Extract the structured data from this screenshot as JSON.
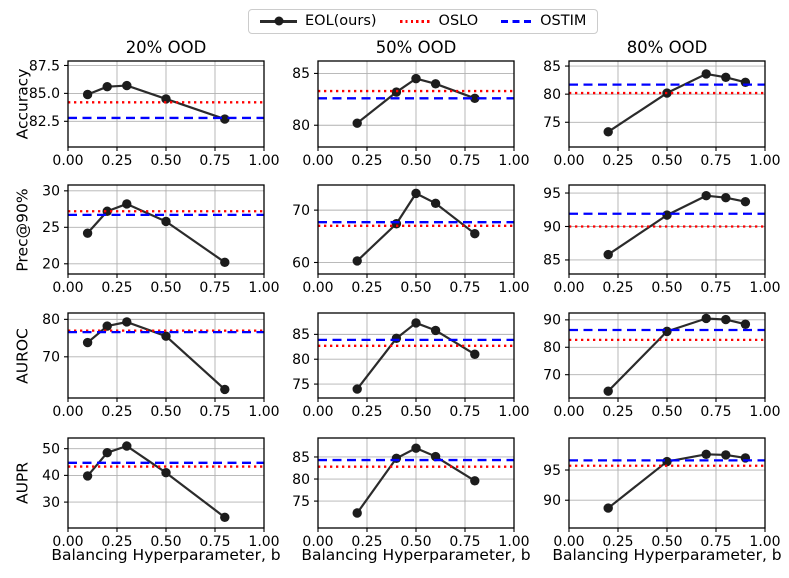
{
  "legend": {
    "items": [
      {
        "label": "EOL(ours)",
        "color": "#2b2b2b",
        "style": "solid-marker"
      },
      {
        "label": "OSLO",
        "color": "#ff0000",
        "style": "dotted"
      },
      {
        "label": "OSTIM",
        "color": "#0000ff",
        "style": "dashed"
      }
    ]
  },
  "col_titles": [
    "20% OOD",
    "50% OOD",
    "80% OOD"
  ],
  "row_labels": [
    "Accuracy",
    "Prec@90%",
    "AUROC",
    "AUPR"
  ],
  "axes": {
    "xlabel": "Balancing Hyperparameter, b",
    "xlim": [
      0,
      1
    ],
    "xticks": [
      0,
      0.25,
      0.5,
      0.75,
      1
    ],
    "xtick_labels": [
      "0.00",
      "0.25",
      "0.50",
      "0.75",
      "1.00"
    ],
    "grid": true
  },
  "chart_data": [
    {
      "type": "line",
      "metric": "Accuracy",
      "condition": "20% OOD",
      "ylim": [
        80.2,
        87.9
      ],
      "yticks": [
        82.5,
        85.0,
        87.5
      ],
      "ytick_labels": [
        "82.5",
        "85.0",
        "87.5"
      ],
      "series": [
        {
          "name": "EOL(ours)",
          "x": [
            0.1,
            0.2,
            0.3,
            0.5,
            0.8
          ],
          "y": [
            84.9,
            85.6,
            85.7,
            84.5,
            82.7
          ]
        }
      ],
      "hlines": [
        {
          "name": "OSLO",
          "y": 84.2
        },
        {
          "name": "OSTIM",
          "y": 82.8
        }
      ]
    },
    {
      "type": "line",
      "metric": "Accuracy",
      "condition": "50% OOD",
      "ylim": [
        77.9,
        86.2
      ],
      "yticks": [
        80,
        85
      ],
      "ytick_labels": [
        "80",
        "85"
      ],
      "series": [
        {
          "name": "EOL(ours)",
          "x": [
            0.2,
            0.4,
            0.5,
            0.6,
            0.8
          ],
          "y": [
            80.2,
            83.2,
            84.5,
            84.0,
            82.6
          ]
        }
      ],
      "hlines": [
        {
          "name": "OSLO",
          "y": 83.3
        },
        {
          "name": "OSTIM",
          "y": 82.6
        }
      ]
    },
    {
      "type": "line",
      "metric": "Accuracy",
      "condition": "80% OOD",
      "ylim": [
        70.6,
        85.9
      ],
      "yticks": [
        75,
        80,
        85
      ],
      "ytick_labels": [
        "75",
        "80",
        "85"
      ],
      "series": [
        {
          "name": "EOL(ours)",
          "x": [
            0.2,
            0.5,
            0.7,
            0.8,
            0.9
          ],
          "y": [
            73.3,
            80.2,
            83.6,
            83.0,
            82.1
          ]
        }
      ],
      "hlines": [
        {
          "name": "OSLO",
          "y": 80.2
        },
        {
          "name": "OSTIM",
          "y": 81.7
        }
      ]
    },
    {
      "type": "line",
      "metric": "Prec@90%",
      "condition": "20% OOD",
      "ylim": [
        18.6,
        30.8
      ],
      "yticks": [
        20,
        25,
        30
      ],
      "ytick_labels": [
        "20",
        "25",
        "30"
      ],
      "series": [
        {
          "name": "EOL(ours)",
          "x": [
            0.1,
            0.2,
            0.3,
            0.5,
            0.8
          ],
          "y": [
            24.2,
            27.2,
            28.2,
            25.8,
            20.2
          ]
        }
      ],
      "hlines": [
        {
          "name": "OSLO",
          "y": 27.2
        },
        {
          "name": "OSTIM",
          "y": 26.7
        }
      ]
    },
    {
      "type": "line",
      "metric": "Prec@90%",
      "condition": "50% OOD",
      "ylim": [
        57.8,
        74.8
      ],
      "yticks": [
        60,
        70
      ],
      "ytick_labels": [
        "60",
        "70"
      ],
      "series": [
        {
          "name": "EOL(ours)",
          "x": [
            0.2,
            0.4,
            0.5,
            0.6,
            0.8
          ],
          "y": [
            60.3,
            67.4,
            73.2,
            71.3,
            65.5
          ]
        }
      ],
      "hlines": [
        {
          "name": "OSLO",
          "y": 67.0
        },
        {
          "name": "OSTIM",
          "y": 67.7
        }
      ]
    },
    {
      "type": "line",
      "metric": "Prec@90%",
      "condition": "80% OOD",
      "ylim": [
        82.9,
        96.2
      ],
      "yticks": [
        85,
        90,
        95
      ],
      "ytick_labels": [
        "85",
        "90",
        "95"
      ],
      "series": [
        {
          "name": "EOL(ours)",
          "x": [
            0.2,
            0.5,
            0.7,
            0.8,
            0.9
          ],
          "y": [
            85.8,
            91.7,
            94.6,
            94.3,
            93.7
          ]
        }
      ],
      "hlines": [
        {
          "name": "OSLO",
          "y": 90.0
        },
        {
          "name": "OSTIM",
          "y": 91.9
        }
      ]
    },
    {
      "type": "line",
      "metric": "AUROC",
      "condition": "20% OOD",
      "ylim": [
        59.0,
        81.7
      ],
      "yticks": [
        70,
        80
      ],
      "ytick_labels": [
        "70",
        "80"
      ],
      "series": [
        {
          "name": "EOL(ours)",
          "x": [
            0.1,
            0.2,
            0.3,
            0.5,
            0.8
          ],
          "y": [
            73.8,
            78.2,
            79.3,
            75.5,
            61.3
          ]
        }
      ],
      "hlines": [
        {
          "name": "OSLO",
          "y": 77.0
        },
        {
          "name": "OSTIM",
          "y": 76.6
        }
      ]
    },
    {
      "type": "line",
      "metric": "AUROC",
      "condition": "50% OOD",
      "ylim": [
        72.2,
        89.3
      ],
      "yticks": [
        75,
        80,
        85
      ],
      "ytick_labels": [
        "75",
        "80",
        "85"
      ],
      "series": [
        {
          "name": "EOL(ours)",
          "x": [
            0.2,
            0.4,
            0.5,
            0.6,
            0.8
          ],
          "y": [
            74.0,
            84.2,
            87.3,
            85.8,
            81.0
          ]
        }
      ],
      "hlines": [
        {
          "name": "OSLO",
          "y": 82.7
        },
        {
          "name": "OSTIM",
          "y": 83.9
        }
      ]
    },
    {
      "type": "line",
      "metric": "AUROC",
      "condition": "80% OOD",
      "ylim": [
        61.5,
        92.5
      ],
      "yticks": [
        70,
        80,
        90
      ],
      "ytick_labels": [
        "70",
        "80",
        "90"
      ],
      "series": [
        {
          "name": "EOL(ours)",
          "x": [
            0.2,
            0.5,
            0.7,
            0.8,
            0.9
          ],
          "y": [
            64.0,
            85.8,
            90.5,
            90.1,
            88.4
          ]
        }
      ],
      "hlines": [
        {
          "name": "OSLO",
          "y": 82.7
        },
        {
          "name": "OSTIM",
          "y": 86.3
        }
      ]
    },
    {
      "type": "line",
      "metric": "AUPR",
      "condition": "20% OOD",
      "ylim": [
        20.3,
        54.0
      ],
      "yticks": [
        30,
        40,
        50
      ],
      "ytick_labels": [
        "30",
        "40",
        "50"
      ],
      "series": [
        {
          "name": "EOL(ours)",
          "x": [
            0.1,
            0.2,
            0.3,
            0.5,
            0.8
          ],
          "y": [
            39.8,
            48.5,
            51.0,
            41.0,
            24.3
          ]
        }
      ],
      "hlines": [
        {
          "name": "OSLO",
          "y": 43.3
        },
        {
          "name": "OSTIM",
          "y": 44.7
        }
      ]
    },
    {
      "type": "line",
      "metric": "AUPR",
      "condition": "50% OOD",
      "ylim": [
        68.9,
        89.3
      ],
      "yticks": [
        75,
        80,
        85
      ],
      "ytick_labels": [
        "75",
        "80",
        "85"
      ],
      "series": [
        {
          "name": "EOL(ours)",
          "x": [
            0.2,
            0.4,
            0.5,
            0.6,
            0.8
          ],
          "y": [
            72.3,
            84.7,
            87.0,
            85.1,
            79.6
          ]
        }
      ],
      "hlines": [
        {
          "name": "OSLO",
          "y": 82.8
        },
        {
          "name": "OSTIM",
          "y": 84.3
        }
      ]
    },
    {
      "type": "line",
      "metric": "AUPR",
      "condition": "80% OOD",
      "ylim": [
        85.4,
        100.3
      ],
      "yticks": [
        90,
        95
      ],
      "ytick_labels": [
        "90",
        "95"
      ],
      "series": [
        {
          "name": "EOL(ours)",
          "x": [
            0.2,
            0.5,
            0.7,
            0.8,
            0.9
          ],
          "y": [
            88.7,
            96.4,
            97.6,
            97.5,
            97.0
          ]
        }
      ],
      "hlines": [
        {
          "name": "OSLO",
          "y": 95.7
        },
        {
          "name": "OSTIM",
          "y": 96.6
        }
      ]
    }
  ]
}
